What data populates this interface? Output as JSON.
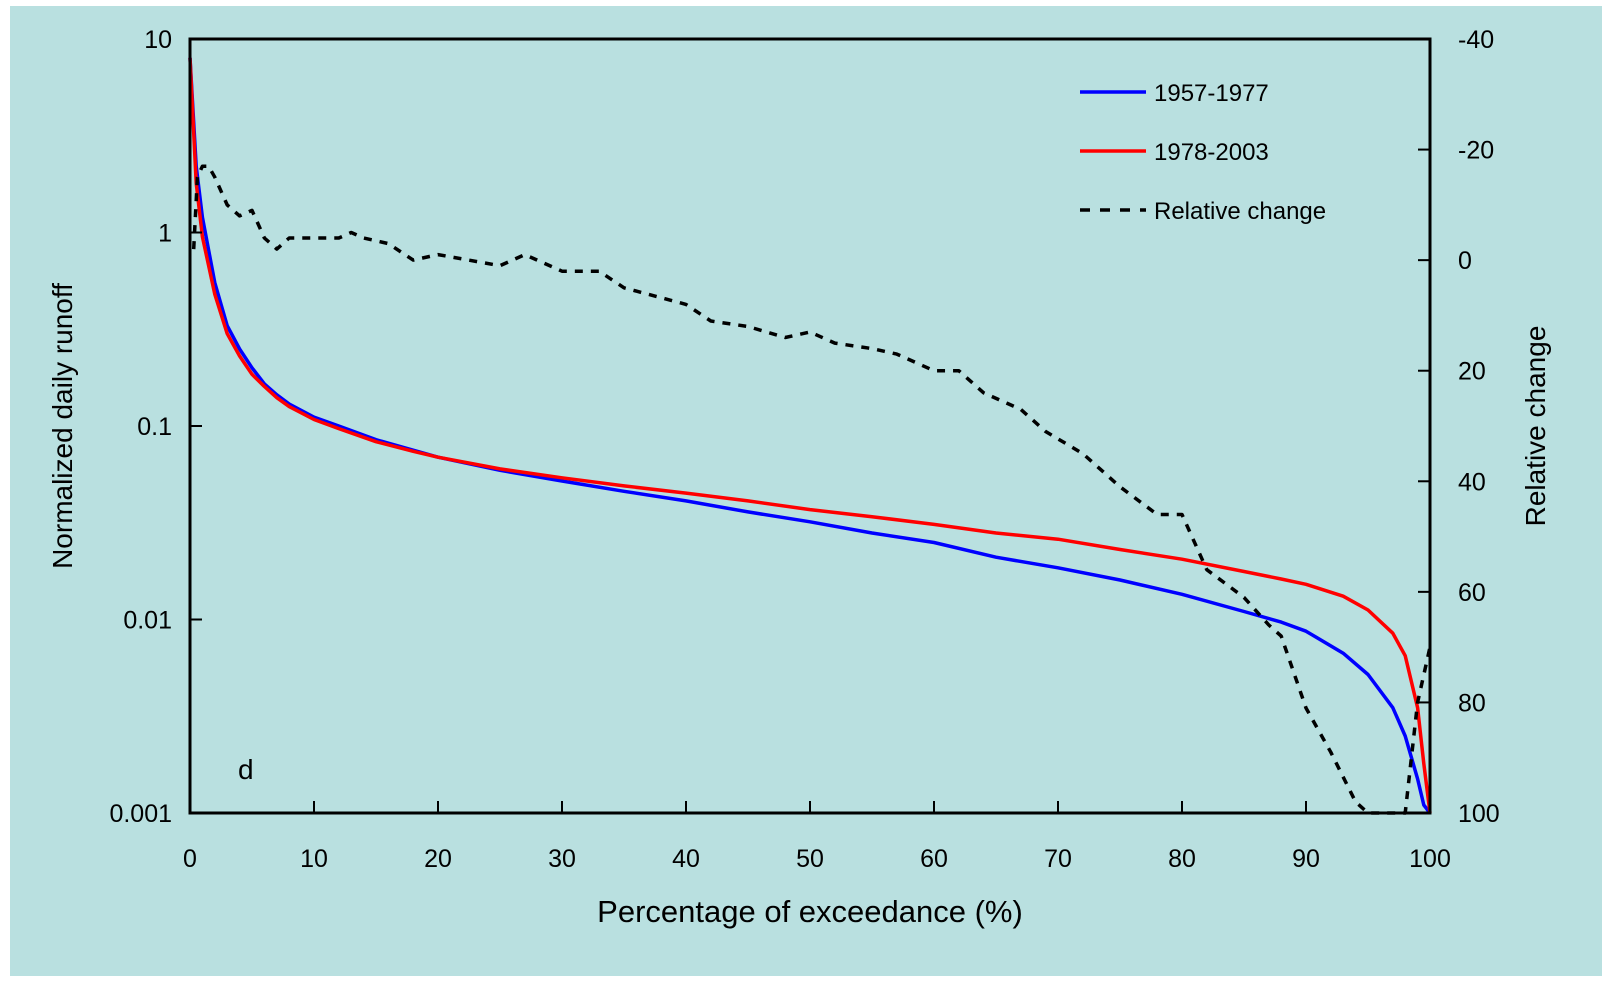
{
  "colors": {
    "background": "#b9e0e0",
    "series_1957_1977": "#0000ff",
    "series_1978_2003": "#ff0000",
    "relative_change": "#000000"
  },
  "chart_data": {
    "type": "line",
    "title": "",
    "panel_label": "d",
    "xlabel": "Percentage of exceedance (%)",
    "ylabel": "Normalized daily runoff",
    "y2label": "Relative change",
    "xlim": [
      0,
      100
    ],
    "ylim": [
      0.001,
      10
    ],
    "y_scale": "log",
    "y2lim": [
      -40,
      100
    ],
    "y2_inverted": true,
    "x_ticks": [
      0,
      10,
      20,
      30,
      40,
      50,
      60,
      70,
      80,
      90,
      100
    ],
    "x_tick_labels": [
      "0",
      "10",
      "20",
      "30",
      "40",
      "50",
      "60",
      "70",
      "80",
      "90",
      "100"
    ],
    "y_ticks": [
      0.001,
      0.01,
      0.1,
      1,
      10
    ],
    "y_tick_labels": [
      "0.001",
      "0.01",
      "0.1",
      "1",
      "10"
    ],
    "y2_ticks": [
      -40,
      -20,
      0,
      20,
      40,
      60,
      80,
      100
    ],
    "y2_tick_labels": [
      "-40",
      "-20",
      "0",
      "20",
      "40",
      "60",
      "80",
      "100"
    ],
    "grid": false,
    "legend_position": "top-right",
    "series": [
      {
        "name": "1957-1977",
        "axis": "left",
        "style": "solid",
        "color_key": "series_1957_1977",
        "x": [
          0,
          0.5,
          1,
          2,
          3,
          4,
          5,
          6,
          7,
          8,
          10,
          12,
          15,
          18,
          20,
          25,
          30,
          35,
          40,
          45,
          50,
          55,
          60,
          65,
          70,
          75,
          80,
          85,
          88,
          90,
          93,
          95,
          97,
          98,
          99,
          99.5,
          100
        ],
        "y": [
          8,
          2.2,
          1.2,
          0.55,
          0.33,
          0.25,
          0.2,
          0.165,
          0.145,
          0.13,
          0.111,
          0.1,
          0.085,
          0.075,
          0.069,
          0.059,
          0.052,
          0.046,
          0.041,
          0.036,
          0.032,
          0.028,
          0.025,
          0.021,
          0.0185,
          0.016,
          0.0135,
          0.011,
          0.0097,
          0.0087,
          0.0067,
          0.0052,
          0.0035,
          0.0025,
          0.0015,
          0.0011,
          0.001
        ]
      },
      {
        "name": "1978-2003",
        "axis": "left",
        "style": "solid",
        "color_key": "series_1978_2003",
        "x": [
          0,
          0.5,
          1,
          2,
          3,
          4,
          5,
          6,
          7,
          8,
          10,
          12,
          15,
          18,
          20,
          25,
          30,
          35,
          40,
          45,
          50,
          55,
          60,
          65,
          70,
          75,
          80,
          85,
          88,
          90,
          93,
          95,
          97,
          98,
          99,
          99.5,
          100
        ],
        "y": [
          8,
          1.8,
          0.95,
          0.48,
          0.3,
          0.23,
          0.185,
          0.16,
          0.14,
          0.126,
          0.108,
          0.097,
          0.083,
          0.074,
          0.069,
          0.06,
          0.054,
          0.049,
          0.045,
          0.041,
          0.037,
          0.034,
          0.031,
          0.028,
          0.026,
          0.023,
          0.0205,
          0.0177,
          0.0162,
          0.0152,
          0.0132,
          0.0112,
          0.0085,
          0.0065,
          0.0035,
          0.0018,
          0.001
        ]
      },
      {
        "name": "Relative change",
        "axis": "right",
        "style": "dashed",
        "color_key": "relative_change",
        "x": [
          0.3,
          0.6,
          1,
          1.5,
          2,
          3,
          4,
          5,
          6,
          7,
          8,
          10,
          12,
          13,
          14,
          16,
          18,
          20,
          25,
          27,
          30,
          33,
          35,
          40,
          42,
          45,
          48,
          50,
          52,
          55,
          57,
          60,
          62,
          64,
          67,
          69,
          72,
          75,
          78,
          80,
          82,
          85,
          87,
          88,
          90,
          92,
          94,
          95,
          96,
          97,
          98,
          99,
          100
        ],
        "y": [
          -2,
          -15,
          -17,
          -17,
          -15,
          -10,
          -8,
          -9,
          -4,
          -2,
          -4,
          -4,
          -4,
          -5,
          -4,
          -3,
          0,
          -1,
          1,
          -1,
          2,
          2,
          5,
          8,
          11,
          12,
          14,
          13,
          15,
          16,
          17,
          20,
          20,
          24,
          27,
          31,
          35,
          41,
          46,
          46,
          56,
          61,
          66,
          68,
          81,
          89,
          98,
          100,
          100,
          100,
          100,
          80,
          70
        ]
      }
    ]
  }
}
